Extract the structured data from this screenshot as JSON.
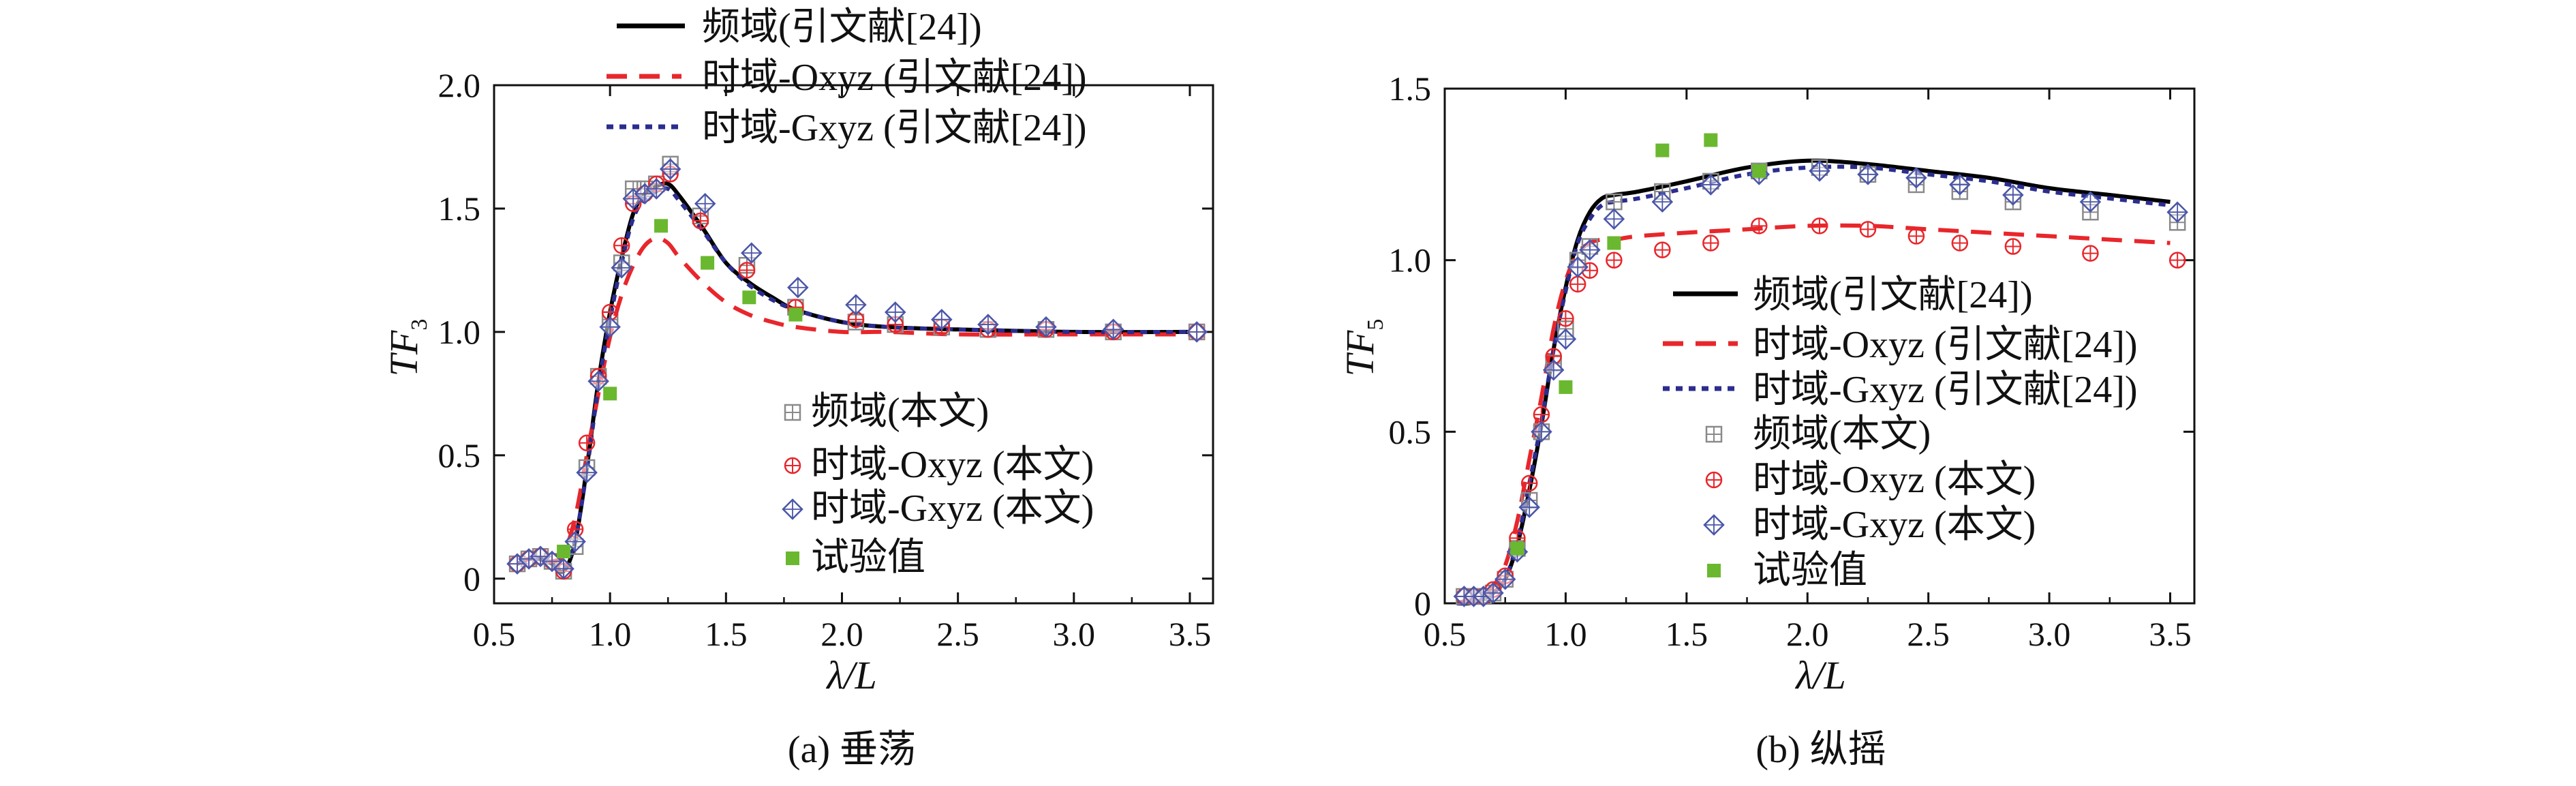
{
  "chart_data": [
    {
      "panel": "a",
      "type": "line",
      "caption": "(a) 垂荡",
      "xlabel": "λ/L",
      "ylabel_main": "TF",
      "ylabel_sub": "3",
      "xlim": [
        0.5,
        3.6
      ],
      "ylim": [
        -0.1,
        2.0
      ],
      "xticks": [
        "0.5",
        "1.0",
        "1.5",
        "2.0",
        "2.5",
        "3.0",
        "3.5"
      ],
      "yticks": [
        "0",
        "0.5",
        "1.0",
        "1.5",
        "2.0"
      ],
      "legend_lines_pos": "top",
      "legend_markers_pos": "center-right",
      "series": [
        {
          "name": "频域(引文献[24])",
          "style": "solid",
          "color": "#000000",
          "x": [
            0.6,
            0.65,
            0.7,
            0.75,
            0.8,
            0.85,
            0.9,
            0.95,
            1.0,
            1.05,
            1.1,
            1.15,
            1.2,
            1.25,
            1.3,
            1.4,
            1.5,
            1.6,
            1.7,
            1.8,
            2.0,
            2.2,
            2.5,
            3.0,
            3.5
          ],
          "y": [
            0.06,
            0.08,
            0.08,
            0.06,
            0.03,
            0.15,
            0.45,
            0.8,
            1.08,
            1.3,
            1.48,
            1.56,
            1.59,
            1.6,
            1.55,
            1.42,
            1.28,
            1.2,
            1.14,
            1.09,
            1.04,
            1.02,
            1.01,
            1.0,
            1.0
          ]
        },
        {
          "name": "时域-Oxyz (引文献[24])",
          "style": "dashed",
          "color": "#e8262b",
          "x": [
            0.6,
            0.65,
            0.7,
            0.75,
            0.8,
            0.85,
            0.9,
            0.95,
            1.0,
            1.05,
            1.1,
            1.15,
            1.2,
            1.25,
            1.3,
            1.4,
            1.5,
            1.6,
            1.7,
            1.8,
            2.0,
            2.2,
            2.5,
            3.0,
            3.5
          ],
          "y": [
            0.06,
            0.08,
            0.08,
            0.07,
            0.1,
            0.25,
            0.5,
            0.75,
            0.98,
            1.15,
            1.27,
            1.35,
            1.38,
            1.36,
            1.3,
            1.2,
            1.12,
            1.07,
            1.04,
            1.02,
            1.0,
            1.0,
            0.99,
            0.99,
            0.99
          ]
        },
        {
          "name": "时域-Gxyz (引文献[24])",
          "style": "dotted",
          "color": "#2b2d8f",
          "x": [
            0.6,
            0.65,
            0.7,
            0.75,
            0.8,
            0.85,
            0.9,
            0.95,
            1.0,
            1.05,
            1.1,
            1.15,
            1.2,
            1.25,
            1.3,
            1.4,
            1.5,
            1.6,
            1.7,
            1.8,
            2.0,
            2.2,
            2.5,
            3.0,
            3.5
          ],
          "y": [
            0.06,
            0.08,
            0.08,
            0.06,
            0.04,
            0.16,
            0.44,
            0.78,
            1.05,
            1.28,
            1.46,
            1.54,
            1.57,
            1.58,
            1.53,
            1.41,
            1.28,
            1.19,
            1.13,
            1.09,
            1.04,
            1.02,
            1.01,
            1.0,
            1.0
          ]
        },
        {
          "name": "频域(本文)",
          "marker": "square-plus",
          "color": "#8a8a8a",
          "x": [
            0.6,
            0.65,
            0.7,
            0.75,
            0.8,
            0.85,
            0.9,
            0.95,
            1.0,
            1.05,
            1.1,
            1.15,
            1.2,
            1.26,
            1.39,
            1.59,
            1.8,
            2.06,
            2.23,
            2.43,
            2.63,
            2.88,
            3.17,
            3.53
          ],
          "y": [
            0.06,
            0.08,
            0.09,
            0.07,
            0.03,
            0.13,
            0.45,
            0.82,
            1.05,
            1.28,
            1.58,
            1.58,
            1.6,
            1.68,
            1.47,
            1.27,
            1.1,
            1.04,
            1.03,
            1.02,
            1.01,
            1.01,
            1.0,
            1.0
          ]
        },
        {
          "name": "时域-Oxyz (本文)",
          "marker": "circle-plus",
          "color": "#e8262b",
          "x": [
            0.6,
            0.65,
            0.7,
            0.75,
            0.8,
            0.85,
            0.9,
            0.95,
            1.0,
            1.05,
            1.1,
            1.15,
            1.2,
            1.26,
            1.39,
            1.59,
            1.8,
            2.06,
            2.23,
            2.43,
            2.63,
            2.88,
            3.17,
            3.53
          ],
          "y": [
            0.06,
            0.08,
            0.09,
            0.07,
            0.03,
            0.2,
            0.55,
            0.82,
            1.08,
            1.35,
            1.52,
            1.56,
            1.6,
            1.64,
            1.45,
            1.25,
            1.1,
            1.05,
            1.03,
            1.02,
            1.01,
            1.01,
            1.0,
            1.0
          ]
        },
        {
          "name": "时域-Gxyz (本文)",
          "marker": "diamond-plus",
          "color": "#4a56a8",
          "x": [
            0.6,
            0.65,
            0.7,
            0.75,
            0.8,
            0.85,
            0.9,
            0.95,
            1.0,
            1.05,
            1.1,
            1.15,
            1.2,
            1.26,
            1.41,
            1.61,
            1.81,
            2.06,
            2.23,
            2.43,
            2.63,
            2.88,
            3.17,
            3.53
          ],
          "y": [
            0.06,
            0.08,
            0.09,
            0.07,
            0.04,
            0.15,
            0.43,
            0.8,
            1.02,
            1.26,
            1.54,
            1.56,
            1.58,
            1.66,
            1.52,
            1.32,
            1.18,
            1.11,
            1.08,
            1.05,
            1.03,
            1.02,
            1.01,
            1.0
          ]
        },
        {
          "name": "试验值",
          "marker": "filled-square",
          "color": "#6ab82f",
          "x": [
            0.8,
            1.0,
            1.22,
            1.42,
            1.6,
            1.8
          ],
          "y": [
            0.11,
            0.75,
            1.43,
            1.28,
            1.14,
            1.07
          ]
        }
      ]
    },
    {
      "panel": "b",
      "type": "line",
      "caption": "(b) 纵摇",
      "xlabel": "λ/L",
      "ylabel_main": "TF",
      "ylabel_sub": "5",
      "xlim": [
        0.5,
        3.6
      ],
      "ylim": [
        0,
        1.5
      ],
      "xticks": [
        "0.5",
        "1.0",
        "1.5",
        "2.0",
        "2.5",
        "3.0",
        "3.5"
      ],
      "yticks": [
        "0",
        "0.5",
        "1.0",
        "1.5"
      ],
      "legend_pos": "center-right",
      "series": [
        {
          "name": "频域(引文献[24])",
          "style": "solid",
          "color": "#000000",
          "x": [
            0.55,
            0.6,
            0.65,
            0.7,
            0.75,
            0.8,
            0.85,
            0.9,
            0.95,
            1.0,
            1.05,
            1.1,
            1.15,
            1.2,
            1.3,
            1.5,
            1.75,
            2.0,
            2.25,
            2.5,
            2.75,
            3.0,
            3.25,
            3.5
          ],
          "y": [
            0.0,
            0.0,
            0.01,
            0.03,
            0.07,
            0.17,
            0.33,
            0.52,
            0.74,
            0.92,
            1.06,
            1.14,
            1.18,
            1.19,
            1.2,
            1.23,
            1.27,
            1.29,
            1.28,
            1.26,
            1.24,
            1.21,
            1.19,
            1.17
          ]
        },
        {
          "name": "时域-Oxyz (引文献[24])",
          "style": "dashed",
          "color": "#e8262b",
          "x": [
            0.55,
            0.6,
            0.65,
            0.7,
            0.75,
            0.8,
            0.85,
            0.9,
            0.95,
            1.0,
            1.05,
            1.1,
            1.15,
            1.2,
            1.3,
            1.5,
            1.75,
            2.0,
            2.25,
            2.5,
            2.75,
            3.0,
            3.25,
            3.5
          ],
          "y": [
            0.0,
            0.01,
            0.02,
            0.05,
            0.11,
            0.24,
            0.42,
            0.6,
            0.8,
            0.94,
            1.02,
            1.05,
            1.06,
            1.06,
            1.07,
            1.08,
            1.09,
            1.1,
            1.1,
            1.09,
            1.08,
            1.07,
            1.06,
            1.05
          ]
        },
        {
          "name": "时域-Gxyz (引文献[24])",
          "style": "dotted",
          "color": "#2b2d8f",
          "x": [
            0.55,
            0.6,
            0.65,
            0.7,
            0.75,
            0.8,
            0.85,
            0.9,
            0.95,
            1.0,
            1.05,
            1.1,
            1.15,
            1.2,
            1.3,
            1.5,
            1.75,
            2.0,
            2.25,
            2.5,
            2.75,
            3.0,
            3.25,
            3.5
          ],
          "y": [
            0.0,
            0.0,
            0.01,
            0.03,
            0.07,
            0.18,
            0.35,
            0.53,
            0.74,
            0.91,
            1.05,
            1.12,
            1.16,
            1.17,
            1.18,
            1.21,
            1.25,
            1.27,
            1.27,
            1.25,
            1.23,
            1.2,
            1.18,
            1.16
          ]
        },
        {
          "name": "频域(本文)",
          "marker": "square-plus",
          "color": "#8a8a8a",
          "x": [
            0.58,
            0.62,
            0.66,
            0.7,
            0.75,
            0.8,
            0.85,
            0.9,
            0.95,
            1.0,
            1.05,
            1.1,
            1.2,
            1.4,
            1.6,
            1.8,
            2.05,
            2.25,
            2.45,
            2.63,
            2.85,
            3.17,
            3.53
          ],
          "y": [
            0.02,
            0.02,
            0.02,
            0.03,
            0.07,
            0.16,
            0.3,
            0.5,
            0.7,
            0.8,
            1.0,
            1.04,
            1.17,
            1.2,
            1.23,
            1.26,
            1.27,
            1.25,
            1.22,
            1.2,
            1.17,
            1.14,
            1.11
          ]
        },
        {
          "name": "时域-Oxyz (本文)",
          "marker": "circle-plus",
          "color": "#e8262b",
          "x": [
            0.58,
            0.62,
            0.66,
            0.7,
            0.75,
            0.8,
            0.85,
            0.9,
            0.95,
            1.0,
            1.05,
            1.1,
            1.2,
            1.4,
            1.6,
            1.8,
            2.05,
            2.25,
            2.45,
            2.63,
            2.85,
            3.17,
            3.53
          ],
          "y": [
            0.02,
            0.02,
            0.02,
            0.04,
            0.08,
            0.19,
            0.35,
            0.55,
            0.72,
            0.83,
            0.93,
            0.97,
            1.0,
            1.03,
            1.05,
            1.1,
            1.1,
            1.09,
            1.07,
            1.05,
            1.04,
            1.02,
            1.0
          ]
        },
        {
          "name": "时域-Gxyz (本文)",
          "marker": "diamond-plus",
          "color": "#4a56a8",
          "x": [
            0.58,
            0.62,
            0.66,
            0.7,
            0.75,
            0.8,
            0.85,
            0.9,
            0.95,
            1.0,
            1.05,
            1.1,
            1.2,
            1.4,
            1.6,
            1.8,
            2.05,
            2.25,
            2.45,
            2.63,
            2.85,
            3.17,
            3.53
          ],
          "y": [
            0.02,
            0.02,
            0.02,
            0.03,
            0.07,
            0.15,
            0.28,
            0.5,
            0.68,
            0.77,
            0.98,
            1.03,
            1.12,
            1.17,
            1.22,
            1.25,
            1.26,
            1.25,
            1.24,
            1.22,
            1.19,
            1.17,
            1.14
          ]
        },
        {
          "name": "试验值",
          "marker": "filled-square",
          "color": "#6ab82f",
          "x": [
            0.8,
            1.0,
            1.2,
            1.4,
            1.6,
            1.8
          ],
          "y": [
            0.16,
            0.63,
            1.05,
            1.32,
            1.35,
            1.26
          ]
        }
      ]
    }
  ]
}
